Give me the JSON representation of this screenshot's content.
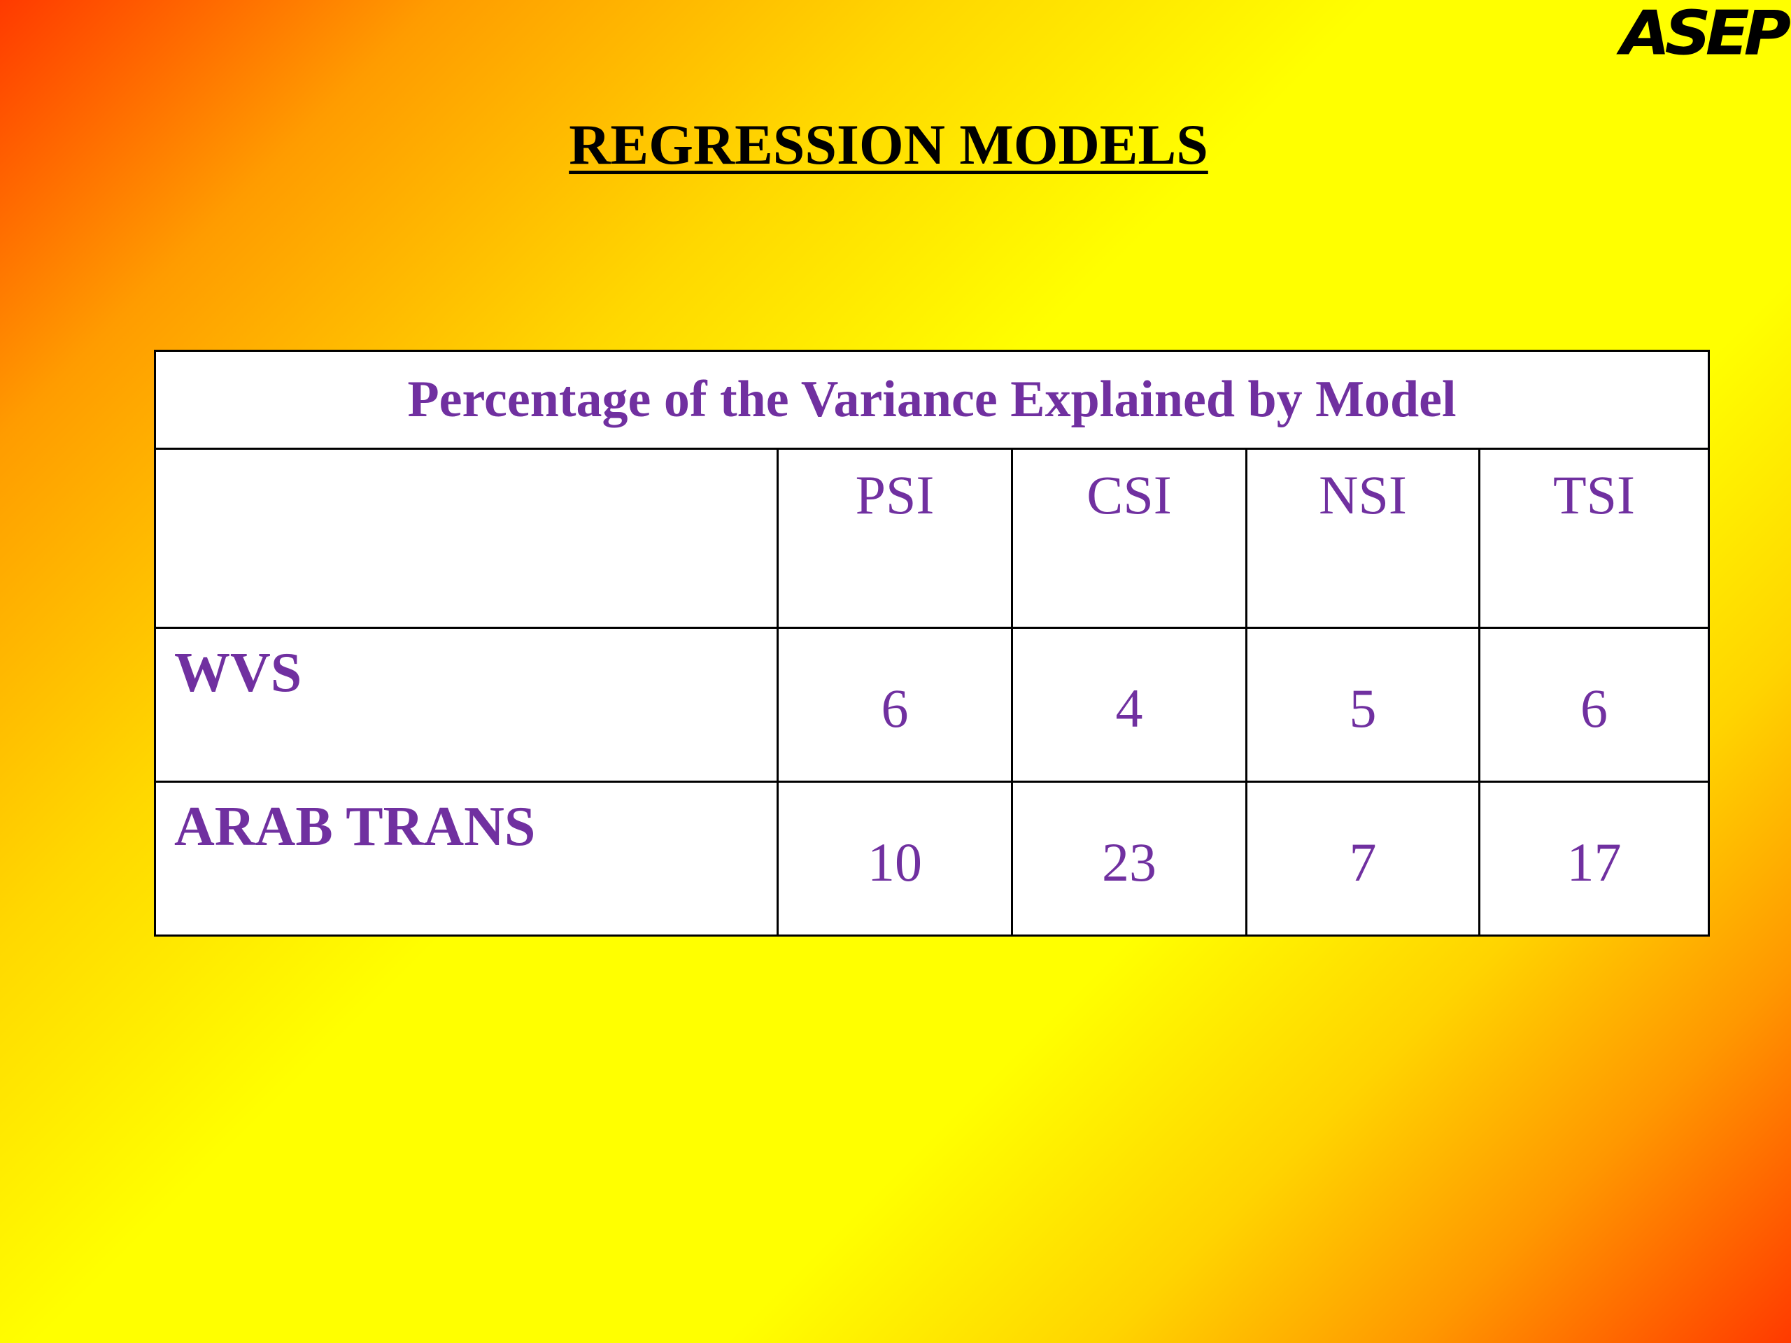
{
  "header": {
    "title": "REGRESSION MODELS",
    "logo": "ASEP"
  },
  "table": {
    "caption": "Percentage of the Variance Explained by Model",
    "columns": [
      "PSI",
      "CSI",
      "NSI",
      "TSI"
    ],
    "rows": [
      {
        "label": "WVS",
        "values": [
          "6",
          "4",
          "5",
          "6"
        ]
      },
      {
        "label": "ARAB TRANS",
        "values": [
          "10",
          "23",
          "7",
          "17"
        ]
      }
    ]
  }
}
